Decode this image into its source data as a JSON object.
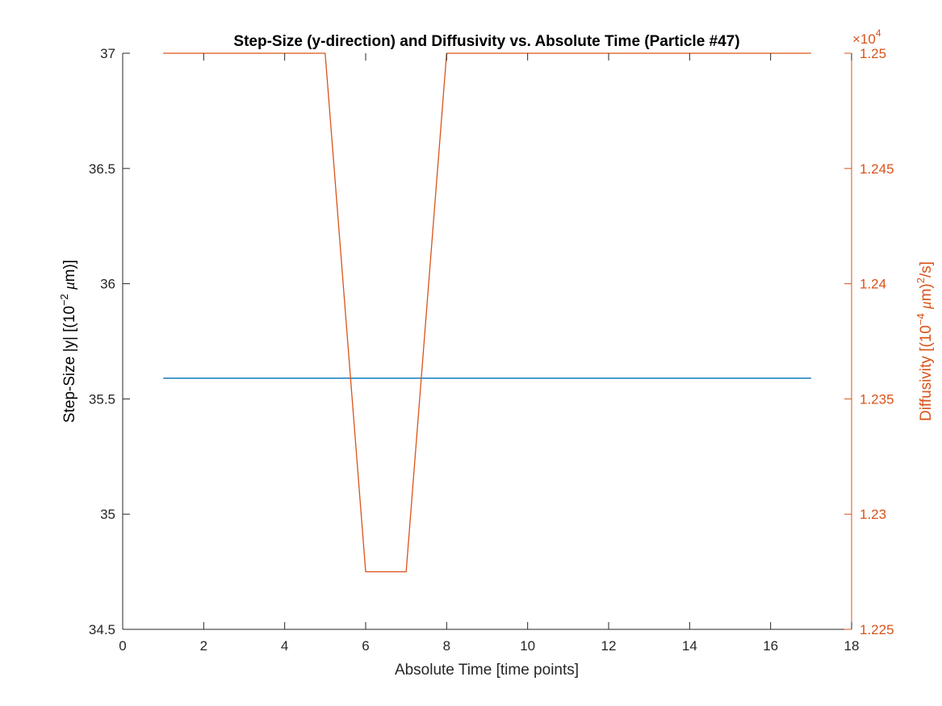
{
  "chart_data": {
    "type": "line",
    "title": "Step-Size (y-direction) and Diffusivity vs. Absolute Time (Particle #47)",
    "xlabel": "Absolute Time [time points]",
    "ylabel_left_parts": [
      "Step-Size |y| [(10",
      "−2",
      " ",
      "μ",
      "m)]"
    ],
    "ylabel_right_parts": [
      "Diffusivity [(10",
      "−4",
      " ",
      "μ",
      "m)",
      "2",
      "/s]"
    ],
    "right_axis_exponent_prefix": "×10",
    "right_axis_exponent_power": "4",
    "xlim": [
      0,
      18
    ],
    "ylim_left": [
      34.5,
      37
    ],
    "ylim_right": [
      1.225,
      1.25
    ],
    "x_ticks": [
      "0",
      "2",
      "4",
      "6",
      "8",
      "10",
      "12",
      "14",
      "16",
      "18"
    ],
    "y_left_ticks": [
      "34.5",
      "35",
      "35.5",
      "36",
      "36.5",
      "37"
    ],
    "y_right_ticks": [
      "1.225",
      "1.23",
      "1.235",
      "1.24",
      "1.245",
      "1.25"
    ],
    "grid": false,
    "colors": {
      "left_axis": "#000000",
      "right_axis": "#D95319",
      "series_left": "#0072BD",
      "series_right": "#D95319"
    },
    "series": [
      {
        "axis": "left",
        "x": [
          1,
          2,
          3,
          4,
          5,
          6,
          7,
          8,
          9,
          10,
          11,
          12,
          13,
          14,
          15,
          16,
          17
        ],
        "values": [
          35.59,
          35.59,
          35.59,
          35.59,
          35.59,
          35.59,
          35.59,
          35.59,
          35.59,
          35.59,
          35.59,
          35.59,
          35.59,
          35.59,
          35.59,
          35.59,
          35.59
        ]
      },
      {
        "axis": "right",
        "x": [
          1,
          2,
          3,
          4,
          5,
          6,
          7,
          8,
          9,
          10,
          11,
          12,
          13,
          14,
          15,
          16,
          17
        ],
        "values": [
          1.25,
          1.25,
          1.25,
          1.25,
          1.25,
          1.2275,
          1.2275,
          1.25,
          1.25,
          1.25,
          1.25,
          1.25,
          1.25,
          1.25,
          1.25,
          1.25,
          1.25
        ]
      }
    ]
  }
}
